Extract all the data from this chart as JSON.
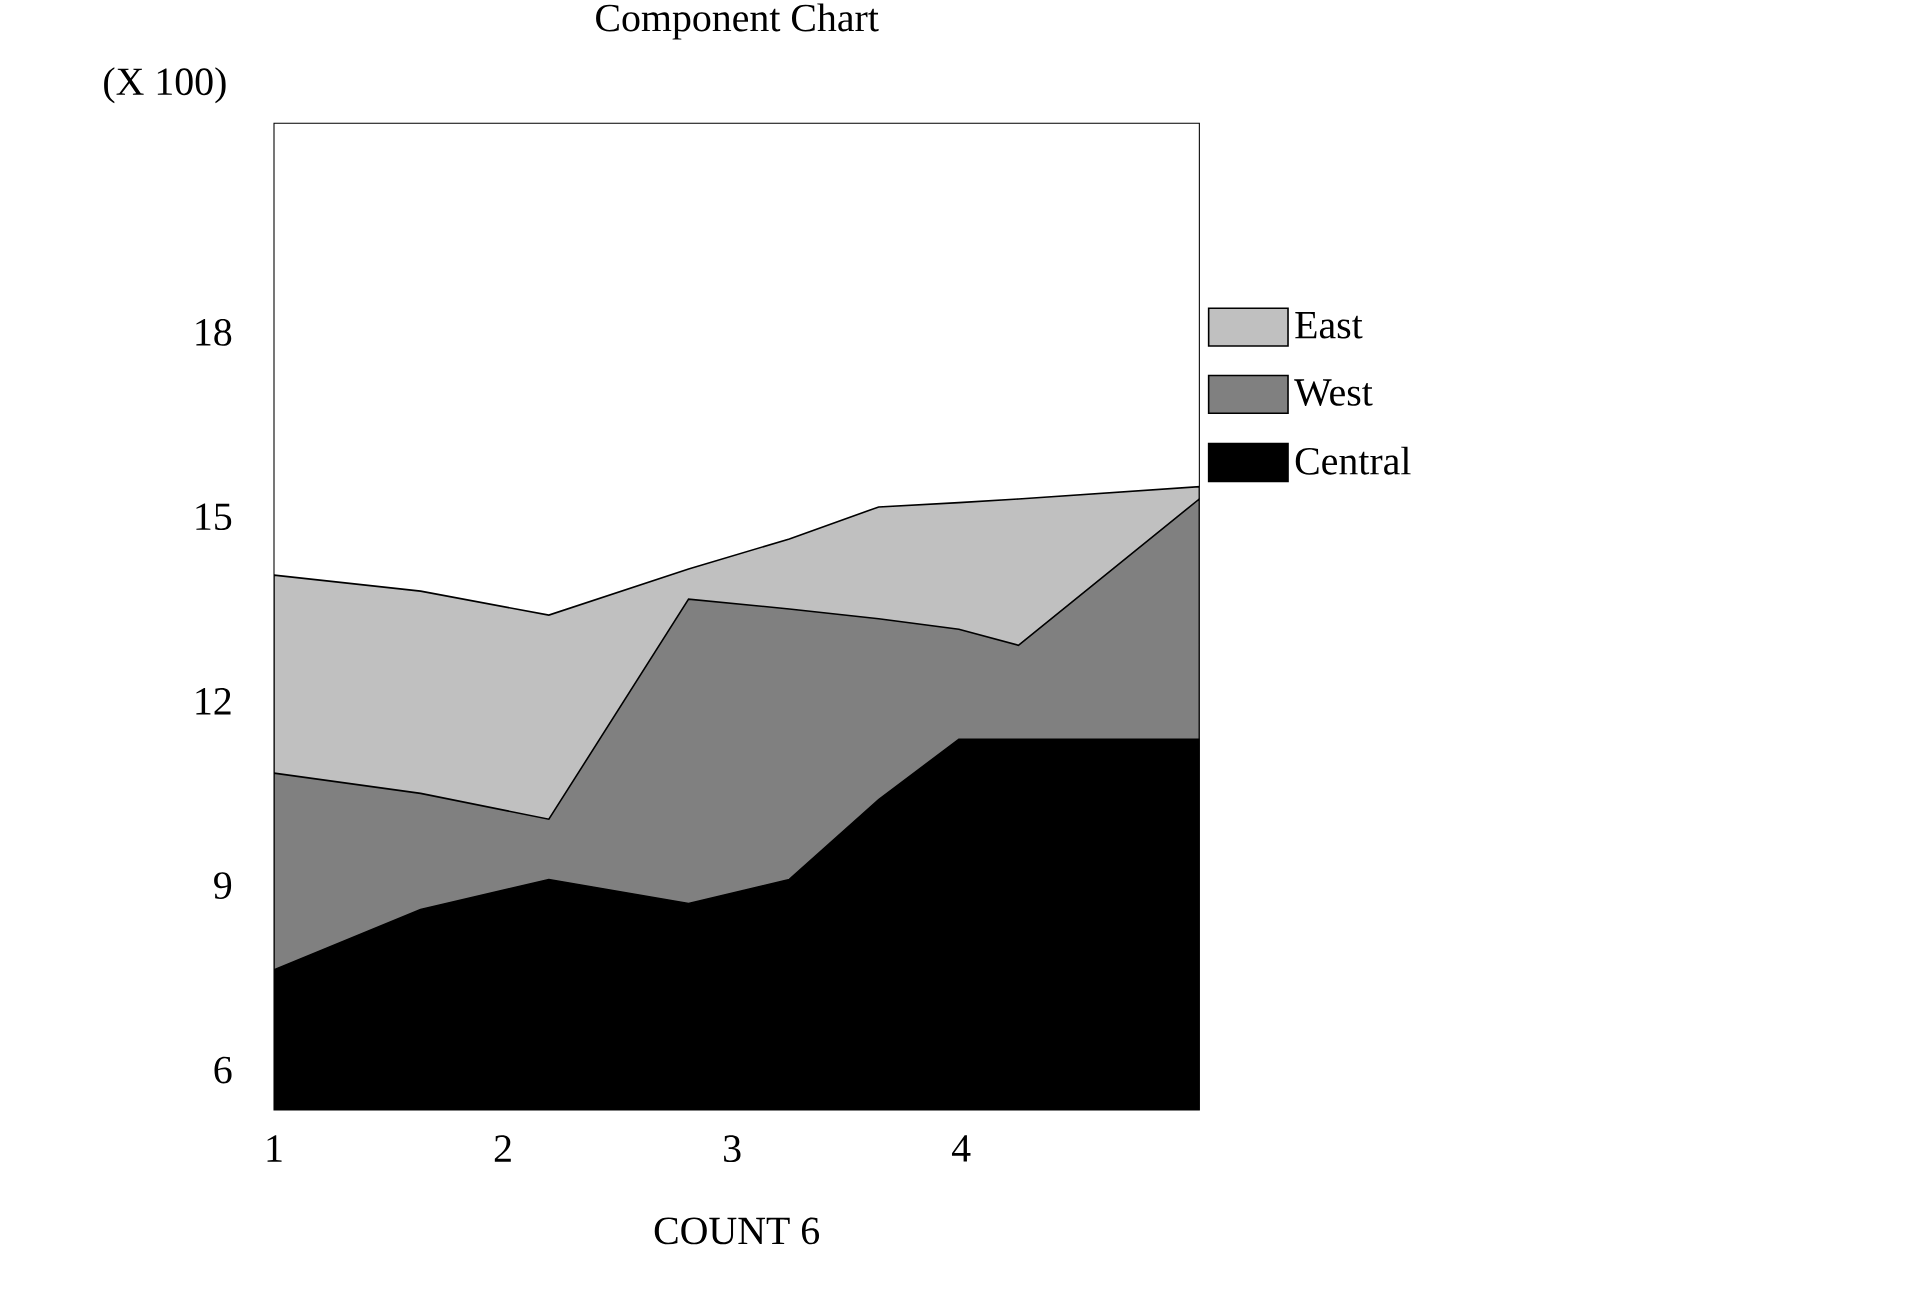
{
  "chart_data": {
    "type": "area",
    "title": "Component Chart",
    "xlabel": "COUNT  6",
    "ylabel": "(X 100)",
    "x": [
      1,
      1.64,
      2.2,
      2.81,
      3.25,
      3.64,
      3.99,
      4.25,
      5.04
    ],
    "xlim": [
      1,
      5.04
    ],
    "xticks": [
      1,
      2,
      3,
      4
    ],
    "ylim": [
      5.35,
      21.4
    ],
    "yticks": [
      6,
      9,
      12,
      15,
      18
    ],
    "legend": "right",
    "grid": false,
    "series": [
      {
        "name": "East",
        "color": "#c0c0c0",
        "values": [
          14.05,
          13.79,
          13.4,
          14.15,
          14.64,
          15.16,
          15.23,
          15.29,
          15.49
        ]
      },
      {
        "name": "West",
        "color": "#808080",
        "values": [
          10.83,
          10.5,
          10.08,
          13.66,
          13.5,
          13.34,
          13.17,
          12.91,
          15.29
        ]
      },
      {
        "name": "Central",
        "color": "#000000",
        "values": [
          7.63,
          8.61,
          9.1,
          8.71,
          9.1,
          10.4,
          11.38,
          11.38,
          11.38
        ]
      }
    ]
  }
}
